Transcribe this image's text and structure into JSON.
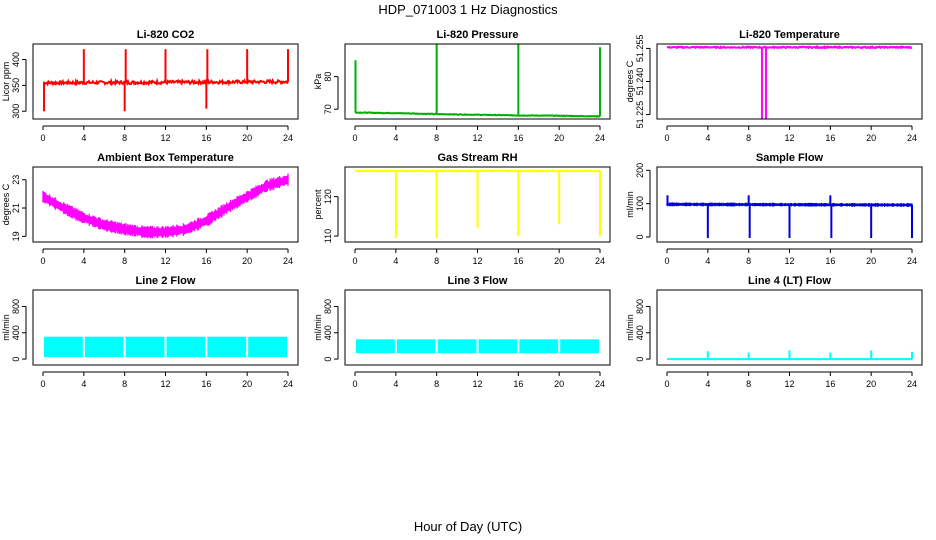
{
  "figure": {
    "title": "HDP_071003  1 Hz Diagnostics",
    "xlabel": "Hour of Day (UTC)"
  },
  "chart_data": [
    {
      "type": "line",
      "title": "Li-820 CO2",
      "ylabel": "Licor ppm",
      "color": "#ff0000",
      "xticks": [
        0,
        4,
        8,
        12,
        16,
        20,
        24
      ],
      "yticks": [
        300,
        350,
        400
      ],
      "ylim": [
        285,
        430
      ],
      "xlim": [
        0,
        24
      ],
      "series": [
        {
          "pattern": "baseline_spikes",
          "baseline": [
            [
              0,
              355
            ],
            [
              24,
              357
            ]
          ],
          "spikes": [
            [
              0.1,
              300
            ],
            [
              0.2,
              355
            ],
            [
              4,
              420
            ],
            [
              8,
              300
            ],
            [
              8.1,
              420
            ],
            [
              12,
              420
            ],
            [
              16,
              305
            ],
            [
              16.1,
              420
            ],
            [
              20,
              420
            ],
            [
              24,
              420
            ]
          ],
          "noise": 3
        }
      ]
    },
    {
      "type": "line",
      "title": "Li-820 Pressure",
      "ylabel": "kPa",
      "color": "#00b000",
      "xticks": [
        0,
        4,
        8,
        12,
        16,
        20,
        24
      ],
      "yticks": [
        70,
        80
      ],
      "ylim": [
        67,
        90
      ],
      "xlim": [
        0,
        24
      ],
      "series": [
        {
          "pattern": "baseline_spikes",
          "baseline": [
            [
              0,
              69
            ],
            [
              4,
              68.8
            ],
            [
              8,
              68.5
            ],
            [
              12,
              68.3
            ],
            [
              16,
              68.1
            ],
            [
              20,
              68
            ],
            [
              24,
              67.8
            ]
          ],
          "spikes": [
            [
              0.05,
              85
            ],
            [
              8,
              90
            ],
            [
              16,
              90
            ],
            [
              24,
              89
            ]
          ],
          "noise": 0.1
        }
      ]
    },
    {
      "type": "line",
      "title": "Li-820 Temperature",
      "ylabel": "degrees C",
      "color": "#ff00ff",
      "xticks": [
        0,
        4,
        8,
        12,
        16,
        20,
        24
      ],
      "yticks": [
        51.225,
        51.24,
        51.255
      ],
      "ytick_labels": [
        "51.225",
        "51.240",
        "51.255"
      ],
      "ylim": [
        51.223,
        51.257
      ],
      "xlim": [
        0,
        24
      ],
      "series": [
        {
          "pattern": "baseline_spikes",
          "baseline": [
            [
              0,
              51.2555
            ],
            [
              24,
              51.2555
            ]
          ],
          "spikes": [
            [
              9.3,
              51.222
            ],
            [
              9.7,
              51.222
            ]
          ],
          "noise": 0.0003
        }
      ]
    },
    {
      "type": "line",
      "title": "Ambient Box Temperature",
      "ylabel": "degrees C",
      "color": "#ff00ff",
      "xticks": [
        0,
        4,
        8,
        12,
        16,
        20,
        24
      ],
      "yticks": [
        19,
        21,
        23
      ],
      "ylim": [
        18.6,
        23.9
      ],
      "xlim": [
        0,
        24
      ],
      "series": [
        {
          "pattern": "band",
          "center": [
            [
              0,
              21.8
            ],
            [
              2,
              21.0
            ],
            [
              4,
              20.3
            ],
            [
              6,
              19.8
            ],
            [
              8,
              19.5
            ],
            [
              10,
              19.3
            ],
            [
              12,
              19.3
            ],
            [
              14,
              19.5
            ],
            [
              16,
              20.1
            ],
            [
              18,
              21.0
            ],
            [
              20,
              21.8
            ],
            [
              22,
              22.6
            ],
            [
              24,
              23.0
            ]
          ],
          "halfwidth": 0.45
        }
      ]
    },
    {
      "type": "line",
      "title": "Gas Stream RH",
      "ylabel": "percent",
      "color": "#ffff00",
      "xticks": [
        0,
        4,
        8,
        12,
        16,
        20,
        24
      ],
      "yticks": [
        110,
        120
      ],
      "ylim": [
        108.5,
        127.5
      ],
      "xlim": [
        0,
        24
      ],
      "series": [
        {
          "pattern": "baseline_spikes",
          "baseline": [
            [
              0,
              126.5
            ],
            [
              24,
              126.5
            ]
          ],
          "spikes": [
            [
              4,
              109.5
            ],
            [
              8,
              109.5
            ],
            [
              12,
              112
            ],
            [
              16,
              110
            ],
            [
              20,
              113
            ],
            [
              24,
              110
            ]
          ],
          "noise": 0.1
        }
      ]
    },
    {
      "type": "line",
      "title": "Sample Flow",
      "ylabel": "ml/min",
      "color": "#0000dd",
      "xticks": [
        0,
        4,
        8,
        12,
        16,
        20,
        24
      ],
      "yticks": [
        0,
        100,
        200
      ],
      "ylim": [
        -15,
        210
      ],
      "xlim": [
        0,
        24
      ],
      "series": [
        {
          "pattern": "band_spikes",
          "center": [
            [
              0,
              98
            ],
            [
              24,
              96
            ]
          ],
          "halfwidth": 6,
          "spikes": [
            [
              0.05,
              125
            ],
            [
              4,
              -3
            ],
            [
              8,
              125
            ],
            [
              8.1,
              -3
            ],
            [
              12,
              -3
            ],
            [
              16,
              125
            ],
            [
              16.1,
              -3
            ],
            [
              20,
              -3
            ],
            [
              24,
              -3
            ]
          ]
        }
      ]
    },
    {
      "type": "line",
      "title": "Line 2 Flow",
      "ylabel": "ml/min",
      "color": "#00ffff",
      "xticks": [
        0,
        4,
        8,
        12,
        16,
        20,
        24
      ],
      "yticks": [
        0,
        400,
        800
      ],
      "ylim": [
        -90,
        1050
      ],
      "xlim": [
        0,
        24
      ],
      "series": [
        {
          "pattern": "blocks",
          "low": 30,
          "high": 340,
          "gaps": [
            0,
            4,
            8,
            12,
            16,
            20,
            24
          ]
        }
      ]
    },
    {
      "type": "line",
      "title": "Line 3 Flow",
      "ylabel": "ml/min",
      "color": "#00ffff",
      "xticks": [
        0,
        4,
        8,
        12,
        16,
        20,
        24
      ],
      "yticks": [
        0,
        400,
        800
      ],
      "ylim": [
        -90,
        1050
      ],
      "xlim": [
        0,
        24
      ],
      "series": [
        {
          "pattern": "blocks",
          "low": 90,
          "high": 300,
          "gaps": [
            0,
            4,
            8,
            12,
            16,
            20,
            24
          ]
        }
      ]
    },
    {
      "type": "line",
      "title": "Line 4 (LT) Flow",
      "ylabel": "ml/min",
      "color": "#00ffff",
      "xticks": [
        0,
        4,
        8,
        12,
        16,
        20,
        24
      ],
      "yticks": [
        0,
        400,
        800
      ],
      "ylim": [
        -90,
        1050
      ],
      "xlim": [
        0,
        24
      ],
      "series": [
        {
          "pattern": "baseline_spikes",
          "baseline": [
            [
              0,
              0
            ],
            [
              24,
              0
            ]
          ],
          "spikes": [
            [
              4,
              120
            ],
            [
              8,
              100
            ],
            [
              12,
              130
            ],
            [
              16,
              100
            ],
            [
              20,
              130
            ],
            [
              24,
              110
            ]
          ],
          "noise": 0
        }
      ]
    }
  ]
}
